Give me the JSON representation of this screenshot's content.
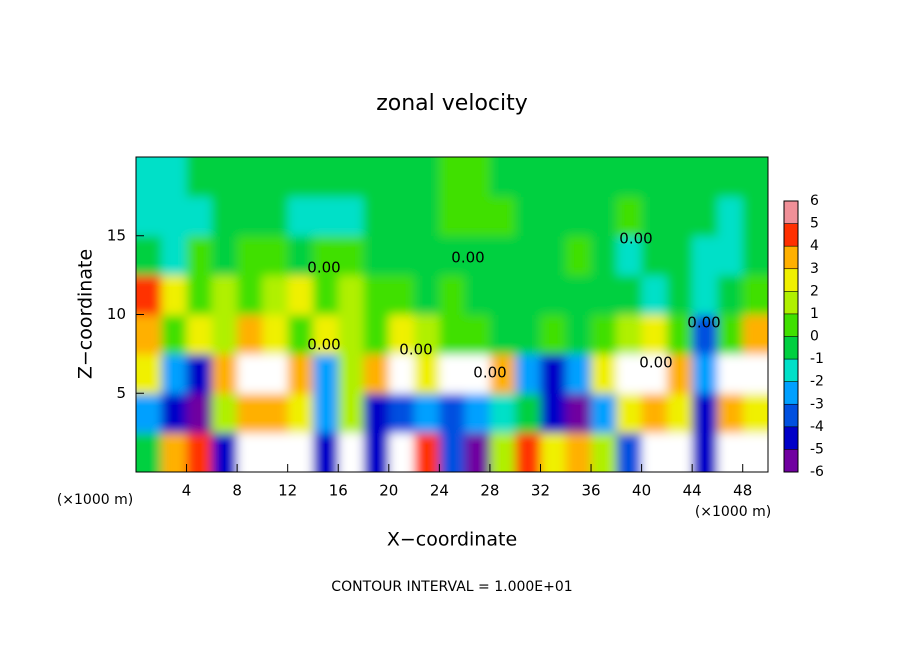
{
  "chart_data": {
    "type": "filled-contour",
    "title": "zonal velocity",
    "x_label": "X−coordinate",
    "y_label": "Z−coordinate",
    "x_unit": "(×1000 m)",
    "y_unit": "(×1000 m)",
    "footnote": "CONTOUR INTERVAL = 1.000E+01",
    "contour_labels": [
      "0.00",
      "0.00",
      "0.00",
      "0.00",
      "0.00",
      "0.00",
      "0.00",
      "0.00"
    ],
    "xlim": [
      0,
      50
    ],
    "ylim": [
      0,
      20
    ],
    "xticks": [
      4,
      8,
      12,
      16,
      20,
      24,
      28,
      32,
      36,
      40,
      44,
      48
    ],
    "yticks": [
      5,
      10,
      15
    ],
    "x": [
      1,
      3,
      5,
      7,
      9,
      11,
      13,
      15,
      17,
      19,
      21,
      23,
      25,
      27,
      29,
      31,
      33,
      35,
      37,
      39,
      41,
      43,
      45,
      47,
      49
    ],
    "y": [
      1.25,
      3.75,
      6.25,
      8.75,
      11.25,
      13.75,
      16.25,
      18.75
    ],
    "values": [
      [
        0,
        4,
        5,
        -4,
        7,
        7,
        7,
        -4,
        7,
        -4,
        7,
        5,
        -3,
        -5,
        2,
        5,
        3,
        4,
        2,
        -3,
        7,
        7,
        -4,
        7,
        7
      ],
      [
        -2,
        -4,
        -5,
        2,
        4,
        4,
        3,
        -2,
        2,
        -4,
        -3,
        -2,
        -3,
        -2,
        -1,
        0,
        -4,
        -5,
        -2,
        3,
        4,
        3,
        -4,
        4,
        3
      ],
      [
        3,
        -2,
        -4,
        4,
        7,
        7,
        4,
        -2,
        2,
        4,
        7,
        3,
        7,
        7,
        4,
        -2,
        -4,
        -2,
        3,
        7,
        7,
        4,
        -2,
        7,
        7
      ],
      [
        4,
        1,
        3,
        2,
        4,
        3,
        1,
        3,
        2,
        1,
        3,
        2,
        1,
        1,
        0,
        0,
        1,
        0,
        1,
        2,
        3,
        1,
        -3,
        1,
        4
      ],
      [
        5,
        3,
        1,
        2,
        1,
        2,
        3,
        1,
        2,
        1,
        1,
        0,
        1,
        0,
        0,
        0,
        0,
        0,
        0,
        0,
        -1,
        0,
        -1,
        0,
        1
      ],
      [
        0,
        -1,
        1,
        0,
        1,
        1,
        0,
        1,
        1,
        0,
        0,
        0,
        0,
        0,
        0,
        0,
        0,
        1,
        0,
        -1,
        0,
        0,
        -1,
        -1,
        0
      ],
      [
        -1,
        -1,
        -1,
        0,
        0,
        0,
        -1,
        -1,
        -1,
        0,
        0,
        0,
        1,
        1,
        1,
        0,
        0,
        0,
        0,
        1,
        0,
        0,
        0,
        -1,
        0
      ],
      [
        -1,
        -1,
        0,
        0,
        0,
        0,
        0,
        0,
        0,
        0,
        0,
        0,
        1,
        1,
        0,
        0,
        0,
        0,
        0,
        0,
        0,
        0,
        0,
        0,
        0
      ]
    ],
    "colorbar": {
      "levels": [
        -6,
        -5,
        -4,
        -3,
        -2,
        -1,
        0,
        1,
        2,
        3,
        4,
        5,
        6
      ],
      "colors": [
        "#7000a0",
        "#0000c8",
        "#0050e0",
        "#00a0ff",
        "#00e0c8",
        "#00d040",
        "#40e000",
        "#b0f000",
        "#f0f000",
        "#ffb000",
        "#ff3000",
        "#f09098"
      ],
      "over_color": "#ffffff"
    }
  }
}
